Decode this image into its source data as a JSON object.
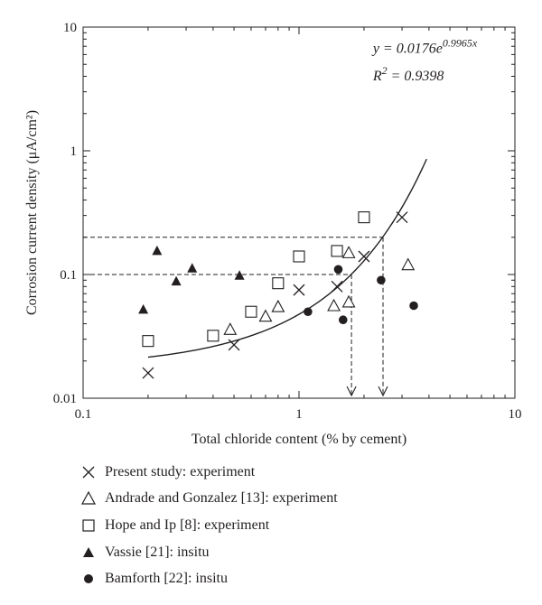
{
  "chart_data": {
    "type": "scatter",
    "xscale": "log",
    "yscale": "log",
    "xlim": [
      0.1,
      10
    ],
    "ylim": [
      0.01,
      10
    ],
    "xlabel": "Total chloride content (% by cement)",
    "ylabel": "Corrosion current density (μA/cm²)",
    "x_ticks": [
      {
        "value": 0.1,
        "label": "0.1"
      },
      {
        "value": 1,
        "label": "1"
      },
      {
        "value": 10,
        "label": "10"
      }
    ],
    "y_ticks": [
      {
        "value": 0.01,
        "label": "0.01"
      },
      {
        "value": 0.1,
        "label": "0.1"
      },
      {
        "value": 1,
        "label": "1"
      },
      {
        "value": 10,
        "label": "10"
      }
    ],
    "grid": false,
    "legend_position": "below",
    "series": [
      {
        "name": "Present study: experiment",
        "marker": "x",
        "points": [
          [
            0.2,
            0.016
          ],
          [
            0.5,
            0.027
          ],
          [
            1.0,
            0.075
          ],
          [
            1.5,
            0.08
          ],
          [
            2.0,
            0.14
          ],
          [
            3.0,
            0.29
          ]
        ]
      },
      {
        "name": "Andrade and Gonzalez [13]: experiment",
        "marker": "triangle-open",
        "points": [
          [
            0.48,
            0.036
          ],
          [
            0.7,
            0.046
          ],
          [
            0.8,
            0.055
          ],
          [
            1.45,
            0.056
          ],
          [
            1.7,
            0.06
          ],
          [
            1.7,
            0.15
          ],
          [
            3.2,
            0.12
          ]
        ]
      },
      {
        "name": "Hope and Ip [8]: experiment",
        "marker": "square-open",
        "points": [
          [
            0.2,
            0.029
          ],
          [
            0.4,
            0.032
          ],
          [
            0.6,
            0.05
          ],
          [
            0.8,
            0.085
          ],
          [
            1.0,
            0.14
          ],
          [
            1.5,
            0.155
          ],
          [
            2.0,
            0.29
          ]
        ]
      },
      {
        "name": "Vassie [21]: insitu",
        "marker": "triangle-filled",
        "points": [
          [
            0.19,
            0.052
          ],
          [
            0.22,
            0.155
          ],
          [
            0.27,
            0.088
          ],
          [
            0.32,
            0.112
          ],
          [
            0.53,
            0.098
          ]
        ]
      },
      {
        "name": "Bamforth [22]: insitu",
        "marker": "circle-filled",
        "points": [
          [
            1.1,
            0.05
          ],
          [
            1.52,
            0.11
          ],
          [
            1.6,
            0.043
          ],
          [
            2.4,
            0.09
          ],
          [
            3.4,
            0.056
          ]
        ]
      }
    ],
    "fit": {
      "equation_prefix": "y = 0.0176e",
      "equation_exponent": "0.9965x",
      "r2_prefix": "R",
      "r2_exponent": "2",
      "r2_value": " = 0.9398",
      "a": 0.0176,
      "b": 0.9965,
      "x_range": [
        0.2,
        3.9
      ]
    },
    "reference_lines": [
      {
        "y": 0.1,
        "x": 1.75
      },
      {
        "y": 0.2,
        "x": 2.45
      }
    ]
  }
}
